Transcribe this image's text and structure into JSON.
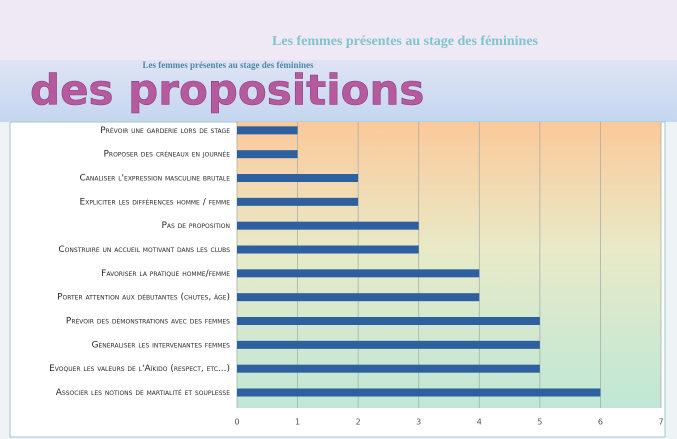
{
  "header": {
    "title": "Les femmes présentes au stage des féminines",
    "subtitle": "Les femmes présentes au stage des féminines",
    "heading": "des propositions"
  },
  "chart_data": {
    "type": "bar",
    "orientation": "horizontal",
    "categories": [
      "Prévoir une garderie lors de stage",
      "Proposer des créneaux en journée",
      "Canaliser l'expression masculine brutale",
      "Expliciter les différences homme / femme",
      "Pas de proposition",
      "Construire un accueil motivant dans les clubs",
      "Favoriser la pratique homme/femme",
      "Porter attention aux débutantes (chutes, âge)",
      "Prévoir des démonstrations avec des femmes",
      "Généraliser les intervenantes femmes",
      "Evoquer les valeurs de l'Aïkido (respect, etc...)",
      "Associer les notions de martialité et souplesse"
    ],
    "values": [
      1,
      1,
      2,
      2,
      3,
      3,
      4,
      4,
      5,
      5,
      5,
      6
    ],
    "color": "#2e5f9e",
    "xlim": [
      0,
      7
    ],
    "xticks": [
      0,
      1,
      2,
      3,
      4,
      5,
      6,
      7
    ],
    "grid": true
  }
}
